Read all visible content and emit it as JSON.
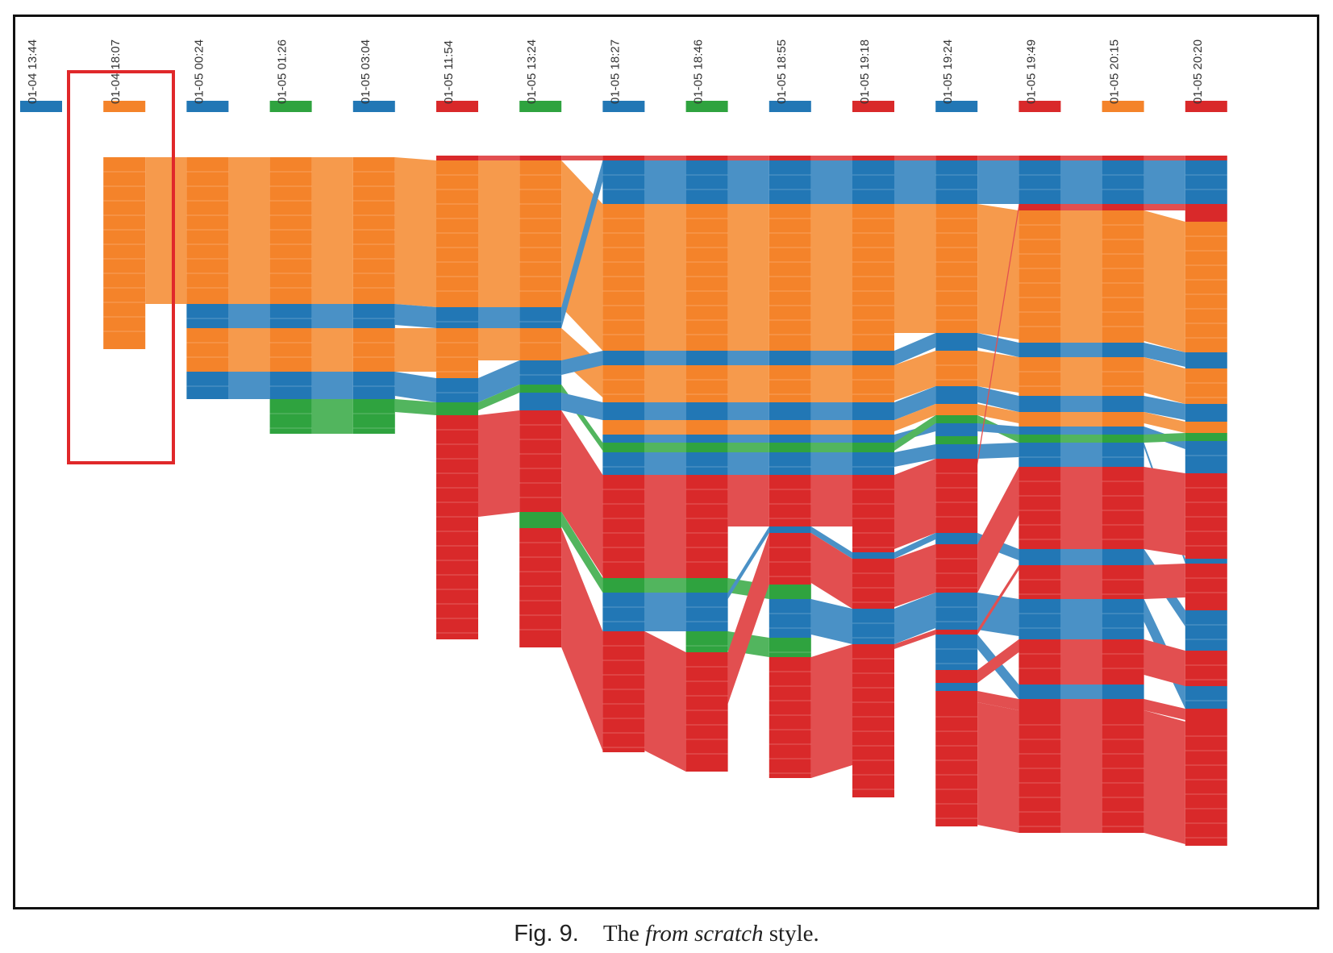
{
  "figure": {
    "columns": [
      {
        "time": "01-04 13:44",
        "color": "blue"
      },
      {
        "time": "01-04 18:07",
        "color": "orange"
      },
      {
        "time": "01-05 00:24",
        "color": "blue"
      },
      {
        "time": "01-05 01:26",
        "color": "green"
      },
      {
        "time": "01-05 03:04",
        "color": "blue"
      },
      {
        "time": "01-05 11:54",
        "color": "red"
      },
      {
        "time": "01-05 13:24",
        "color": "green"
      },
      {
        "time": "01-05 18:27",
        "color": "blue"
      },
      {
        "time": "01-05 18:46",
        "color": "green"
      },
      {
        "time": "01-05 18:55",
        "color": "blue"
      },
      {
        "time": "01-05 19:18",
        "color": "red"
      },
      {
        "time": "01-05 19:24",
        "color": "blue"
      },
      {
        "time": "01-05 19:49",
        "color": "red"
      },
      {
        "time": "01-05 20:15",
        "color": "orange"
      },
      {
        "time": "01-05 20:20",
        "color": "red"
      }
    ],
    "palette": {
      "blue": "#2277b5",
      "orange": "#f4832a",
      "green": "#2fa33f",
      "red": "#d9292a",
      "highlight": "#e0282a"
    },
    "highlighted_column": "01-04 18:07"
  },
  "caption": {
    "label": "Fig. 9.",
    "prefix": "The ",
    "italic": "from scratch",
    "suffix": " style."
  }
}
